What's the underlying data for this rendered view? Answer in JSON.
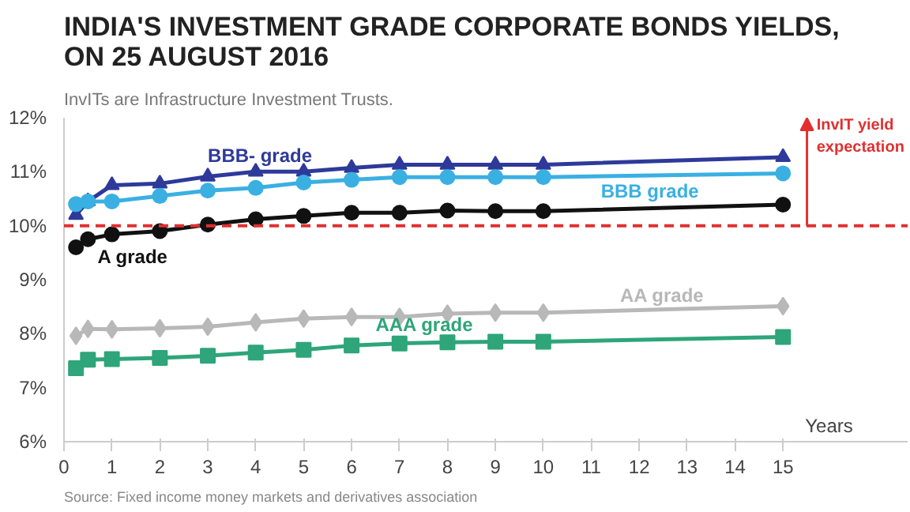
{
  "chart_data": {
    "type": "line",
    "title": "INDIA'S INVESTMENT GRADE CORPORATE BONDS YIELDS, ON 25 AUGUST 2016",
    "subtitle": "InvITs are Infrastructure Investment Trusts.",
    "xlabel": "Years",
    "x": [
      0.25,
      0.5,
      1,
      2,
      3,
      4,
      5,
      6,
      7,
      8,
      9,
      10,
      15
    ],
    "series": [
      {
        "name": "BBB- grade",
        "color": "#2e3a9a",
        "marker": "triangle",
        "values": [
          10.2,
          10.45,
          10.75,
          10.78,
          10.91,
          11.0,
          11.0,
          11.07,
          11.13,
          11.13,
          11.13,
          11.13,
          11.27
        ]
      },
      {
        "name": "BBB grade",
        "color": "#3ab0e2",
        "marker": "circle",
        "values": [
          10.4,
          10.45,
          10.45,
          10.55,
          10.65,
          10.7,
          10.8,
          10.85,
          10.9,
          10.9,
          10.9,
          10.9,
          10.97
        ]
      },
      {
        "name": "A grade",
        "color": "#111111",
        "marker": "circle",
        "values": [
          9.6,
          9.75,
          9.84,
          9.9,
          10.02,
          10.12,
          10.18,
          10.24,
          10.24,
          10.28,
          10.27,
          10.27,
          10.39
        ]
      },
      {
        "name": "AA grade",
        "color": "#b8b8b8",
        "marker": "diamond",
        "values": [
          7.96,
          8.09,
          8.08,
          8.1,
          8.13,
          8.21,
          8.28,
          8.31,
          8.31,
          8.37,
          8.39,
          8.39,
          8.51
        ]
      },
      {
        "name": "AAA grade",
        "color": "#2ea57a",
        "marker": "square",
        "values": [
          7.36,
          7.52,
          7.53,
          7.55,
          7.59,
          7.65,
          7.7,
          7.78,
          7.82,
          7.84,
          7.85,
          7.85,
          7.94
        ]
      }
    ],
    "xlim": [
      0,
      17.6
    ],
    "ylim": [
      6,
      12
    ],
    "xticks": [
      0,
      1,
      2,
      3,
      4,
      5,
      6,
      7,
      8,
      9,
      10,
      11,
      12,
      13,
      14,
      15
    ],
    "yticks": [
      {
        "value": 6,
        "label": "6%"
      },
      {
        "value": 7,
        "label": "7%"
      },
      {
        "value": 8,
        "label": "8%"
      },
      {
        "value": 9,
        "label": "9%"
      },
      {
        "value": 10,
        "label": "10%"
      },
      {
        "value": 11,
        "label": "11%"
      },
      {
        "value": 12,
        "label": "12%"
      }
    ],
    "ref_lines": [
      {
        "axis": "y",
        "value": 10,
        "label": "InvIT yield expectation",
        "color": "#e03030",
        "line_style": "dashed"
      }
    ],
    "annotations": [
      "Source: Fixed income money markets and derivatives association"
    ],
    "grid": false
  }
}
